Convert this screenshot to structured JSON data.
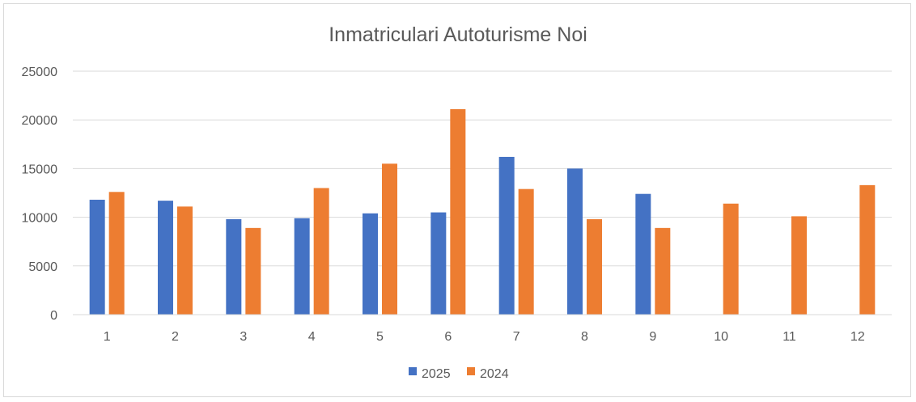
{
  "chart_data": {
    "type": "bar",
    "title": "Inmatriculari Autoturisme Noi",
    "xlabel": "",
    "ylabel": "",
    "categories": [
      "1",
      "2",
      "3",
      "4",
      "5",
      "6",
      "7",
      "8",
      "9",
      "10",
      "11",
      "12"
    ],
    "series": [
      {
        "name": "2025",
        "color": "#4472c4",
        "values": [
          11800,
          11700,
          9800,
          9900,
          10400,
          10500,
          16200,
          15000,
          12400,
          null,
          null,
          null
        ]
      },
      {
        "name": "2024",
        "color": "#ed7d31",
        "values": [
          12600,
          11100,
          8900,
          13000,
          15500,
          21100,
          12900,
          9800,
          8900,
          11400,
          10100,
          13300
        ]
      }
    ],
    "ylim": [
      0,
      25000
    ],
    "yticks": [
      0,
      5000,
      10000,
      15000,
      20000,
      25000
    ],
    "grid": true,
    "legend_position": "bottom"
  }
}
